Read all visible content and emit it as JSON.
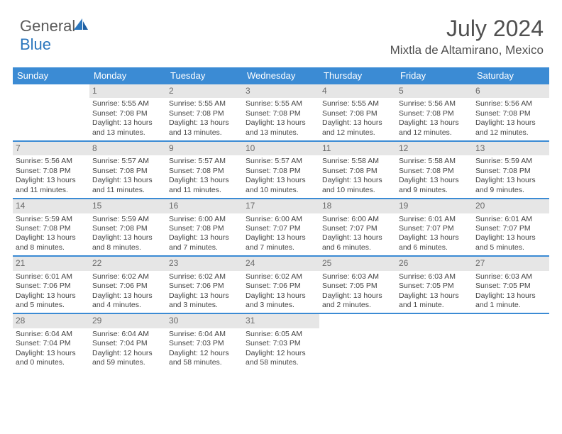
{
  "brand": {
    "general": "General",
    "blue": "Blue"
  },
  "title": {
    "month": "July 2024",
    "location": "Mixtla de Altamirano, Mexico"
  },
  "colors": {
    "header_bg": "#3b8bd4",
    "header_text": "#ffffff",
    "daynum_bg": "#e6e6e6",
    "divider": "#3b8bd4",
    "brand_blue": "#2b76bd",
    "text": "#3a3a3a"
  },
  "dayNames": [
    "Sunday",
    "Monday",
    "Tuesday",
    "Wednesday",
    "Thursday",
    "Friday",
    "Saturday"
  ],
  "weeks": [
    [
      {
        "n": "",
        "empty": true
      },
      {
        "n": "1",
        "sr": "5:55 AM",
        "ss": "7:08 PM",
        "dl1": "Daylight: 13 hours",
        "dl2": "and 13 minutes."
      },
      {
        "n": "2",
        "sr": "5:55 AM",
        "ss": "7:08 PM",
        "dl1": "Daylight: 13 hours",
        "dl2": "and 13 minutes."
      },
      {
        "n": "3",
        "sr": "5:55 AM",
        "ss": "7:08 PM",
        "dl1": "Daylight: 13 hours",
        "dl2": "and 13 minutes."
      },
      {
        "n": "4",
        "sr": "5:55 AM",
        "ss": "7:08 PM",
        "dl1": "Daylight: 13 hours",
        "dl2": "and 12 minutes."
      },
      {
        "n": "5",
        "sr": "5:56 AM",
        "ss": "7:08 PM",
        "dl1": "Daylight: 13 hours",
        "dl2": "and 12 minutes."
      },
      {
        "n": "6",
        "sr": "5:56 AM",
        "ss": "7:08 PM",
        "dl1": "Daylight: 13 hours",
        "dl2": "and 12 minutes."
      }
    ],
    [
      {
        "n": "7",
        "sr": "5:56 AM",
        "ss": "7:08 PM",
        "dl1": "Daylight: 13 hours",
        "dl2": "and 11 minutes."
      },
      {
        "n": "8",
        "sr": "5:57 AM",
        "ss": "7:08 PM",
        "dl1": "Daylight: 13 hours",
        "dl2": "and 11 minutes."
      },
      {
        "n": "9",
        "sr": "5:57 AM",
        "ss": "7:08 PM",
        "dl1": "Daylight: 13 hours",
        "dl2": "and 11 minutes."
      },
      {
        "n": "10",
        "sr": "5:57 AM",
        "ss": "7:08 PM",
        "dl1": "Daylight: 13 hours",
        "dl2": "and 10 minutes."
      },
      {
        "n": "11",
        "sr": "5:58 AM",
        "ss": "7:08 PM",
        "dl1": "Daylight: 13 hours",
        "dl2": "and 10 minutes."
      },
      {
        "n": "12",
        "sr": "5:58 AM",
        "ss": "7:08 PM",
        "dl1": "Daylight: 13 hours",
        "dl2": "and 9 minutes."
      },
      {
        "n": "13",
        "sr": "5:59 AM",
        "ss": "7:08 PM",
        "dl1": "Daylight: 13 hours",
        "dl2": "and 9 minutes."
      }
    ],
    [
      {
        "n": "14",
        "sr": "5:59 AM",
        "ss": "7:08 PM",
        "dl1": "Daylight: 13 hours",
        "dl2": "and 8 minutes."
      },
      {
        "n": "15",
        "sr": "5:59 AM",
        "ss": "7:08 PM",
        "dl1": "Daylight: 13 hours",
        "dl2": "and 8 minutes."
      },
      {
        "n": "16",
        "sr": "6:00 AM",
        "ss": "7:08 PM",
        "dl1": "Daylight: 13 hours",
        "dl2": "and 7 minutes."
      },
      {
        "n": "17",
        "sr": "6:00 AM",
        "ss": "7:07 PM",
        "dl1": "Daylight: 13 hours",
        "dl2": "and 7 minutes."
      },
      {
        "n": "18",
        "sr": "6:00 AM",
        "ss": "7:07 PM",
        "dl1": "Daylight: 13 hours",
        "dl2": "and 6 minutes."
      },
      {
        "n": "19",
        "sr": "6:01 AM",
        "ss": "7:07 PM",
        "dl1": "Daylight: 13 hours",
        "dl2": "and 6 minutes."
      },
      {
        "n": "20",
        "sr": "6:01 AM",
        "ss": "7:07 PM",
        "dl1": "Daylight: 13 hours",
        "dl2": "and 5 minutes."
      }
    ],
    [
      {
        "n": "21",
        "sr": "6:01 AM",
        "ss": "7:06 PM",
        "dl1": "Daylight: 13 hours",
        "dl2": "and 5 minutes."
      },
      {
        "n": "22",
        "sr": "6:02 AM",
        "ss": "7:06 PM",
        "dl1": "Daylight: 13 hours",
        "dl2": "and 4 minutes."
      },
      {
        "n": "23",
        "sr": "6:02 AM",
        "ss": "7:06 PM",
        "dl1": "Daylight: 13 hours",
        "dl2": "and 3 minutes."
      },
      {
        "n": "24",
        "sr": "6:02 AM",
        "ss": "7:06 PM",
        "dl1": "Daylight: 13 hours",
        "dl2": "and 3 minutes."
      },
      {
        "n": "25",
        "sr": "6:03 AM",
        "ss": "7:05 PM",
        "dl1": "Daylight: 13 hours",
        "dl2": "and 2 minutes."
      },
      {
        "n": "26",
        "sr": "6:03 AM",
        "ss": "7:05 PM",
        "dl1": "Daylight: 13 hours",
        "dl2": "and 1 minute."
      },
      {
        "n": "27",
        "sr": "6:03 AM",
        "ss": "7:05 PM",
        "dl1": "Daylight: 13 hours",
        "dl2": "and 1 minute."
      }
    ],
    [
      {
        "n": "28",
        "sr": "6:04 AM",
        "ss": "7:04 PM",
        "dl1": "Daylight: 13 hours",
        "dl2": "and 0 minutes."
      },
      {
        "n": "29",
        "sr": "6:04 AM",
        "ss": "7:04 PM",
        "dl1": "Daylight: 12 hours",
        "dl2": "and 59 minutes."
      },
      {
        "n": "30",
        "sr": "6:04 AM",
        "ss": "7:03 PM",
        "dl1": "Daylight: 12 hours",
        "dl2": "and 58 minutes."
      },
      {
        "n": "31",
        "sr": "6:05 AM",
        "ss": "7:03 PM",
        "dl1": "Daylight: 12 hours",
        "dl2": "and 58 minutes."
      },
      {
        "n": "",
        "empty": true
      },
      {
        "n": "",
        "empty": true
      },
      {
        "n": "",
        "empty": true
      }
    ]
  ]
}
